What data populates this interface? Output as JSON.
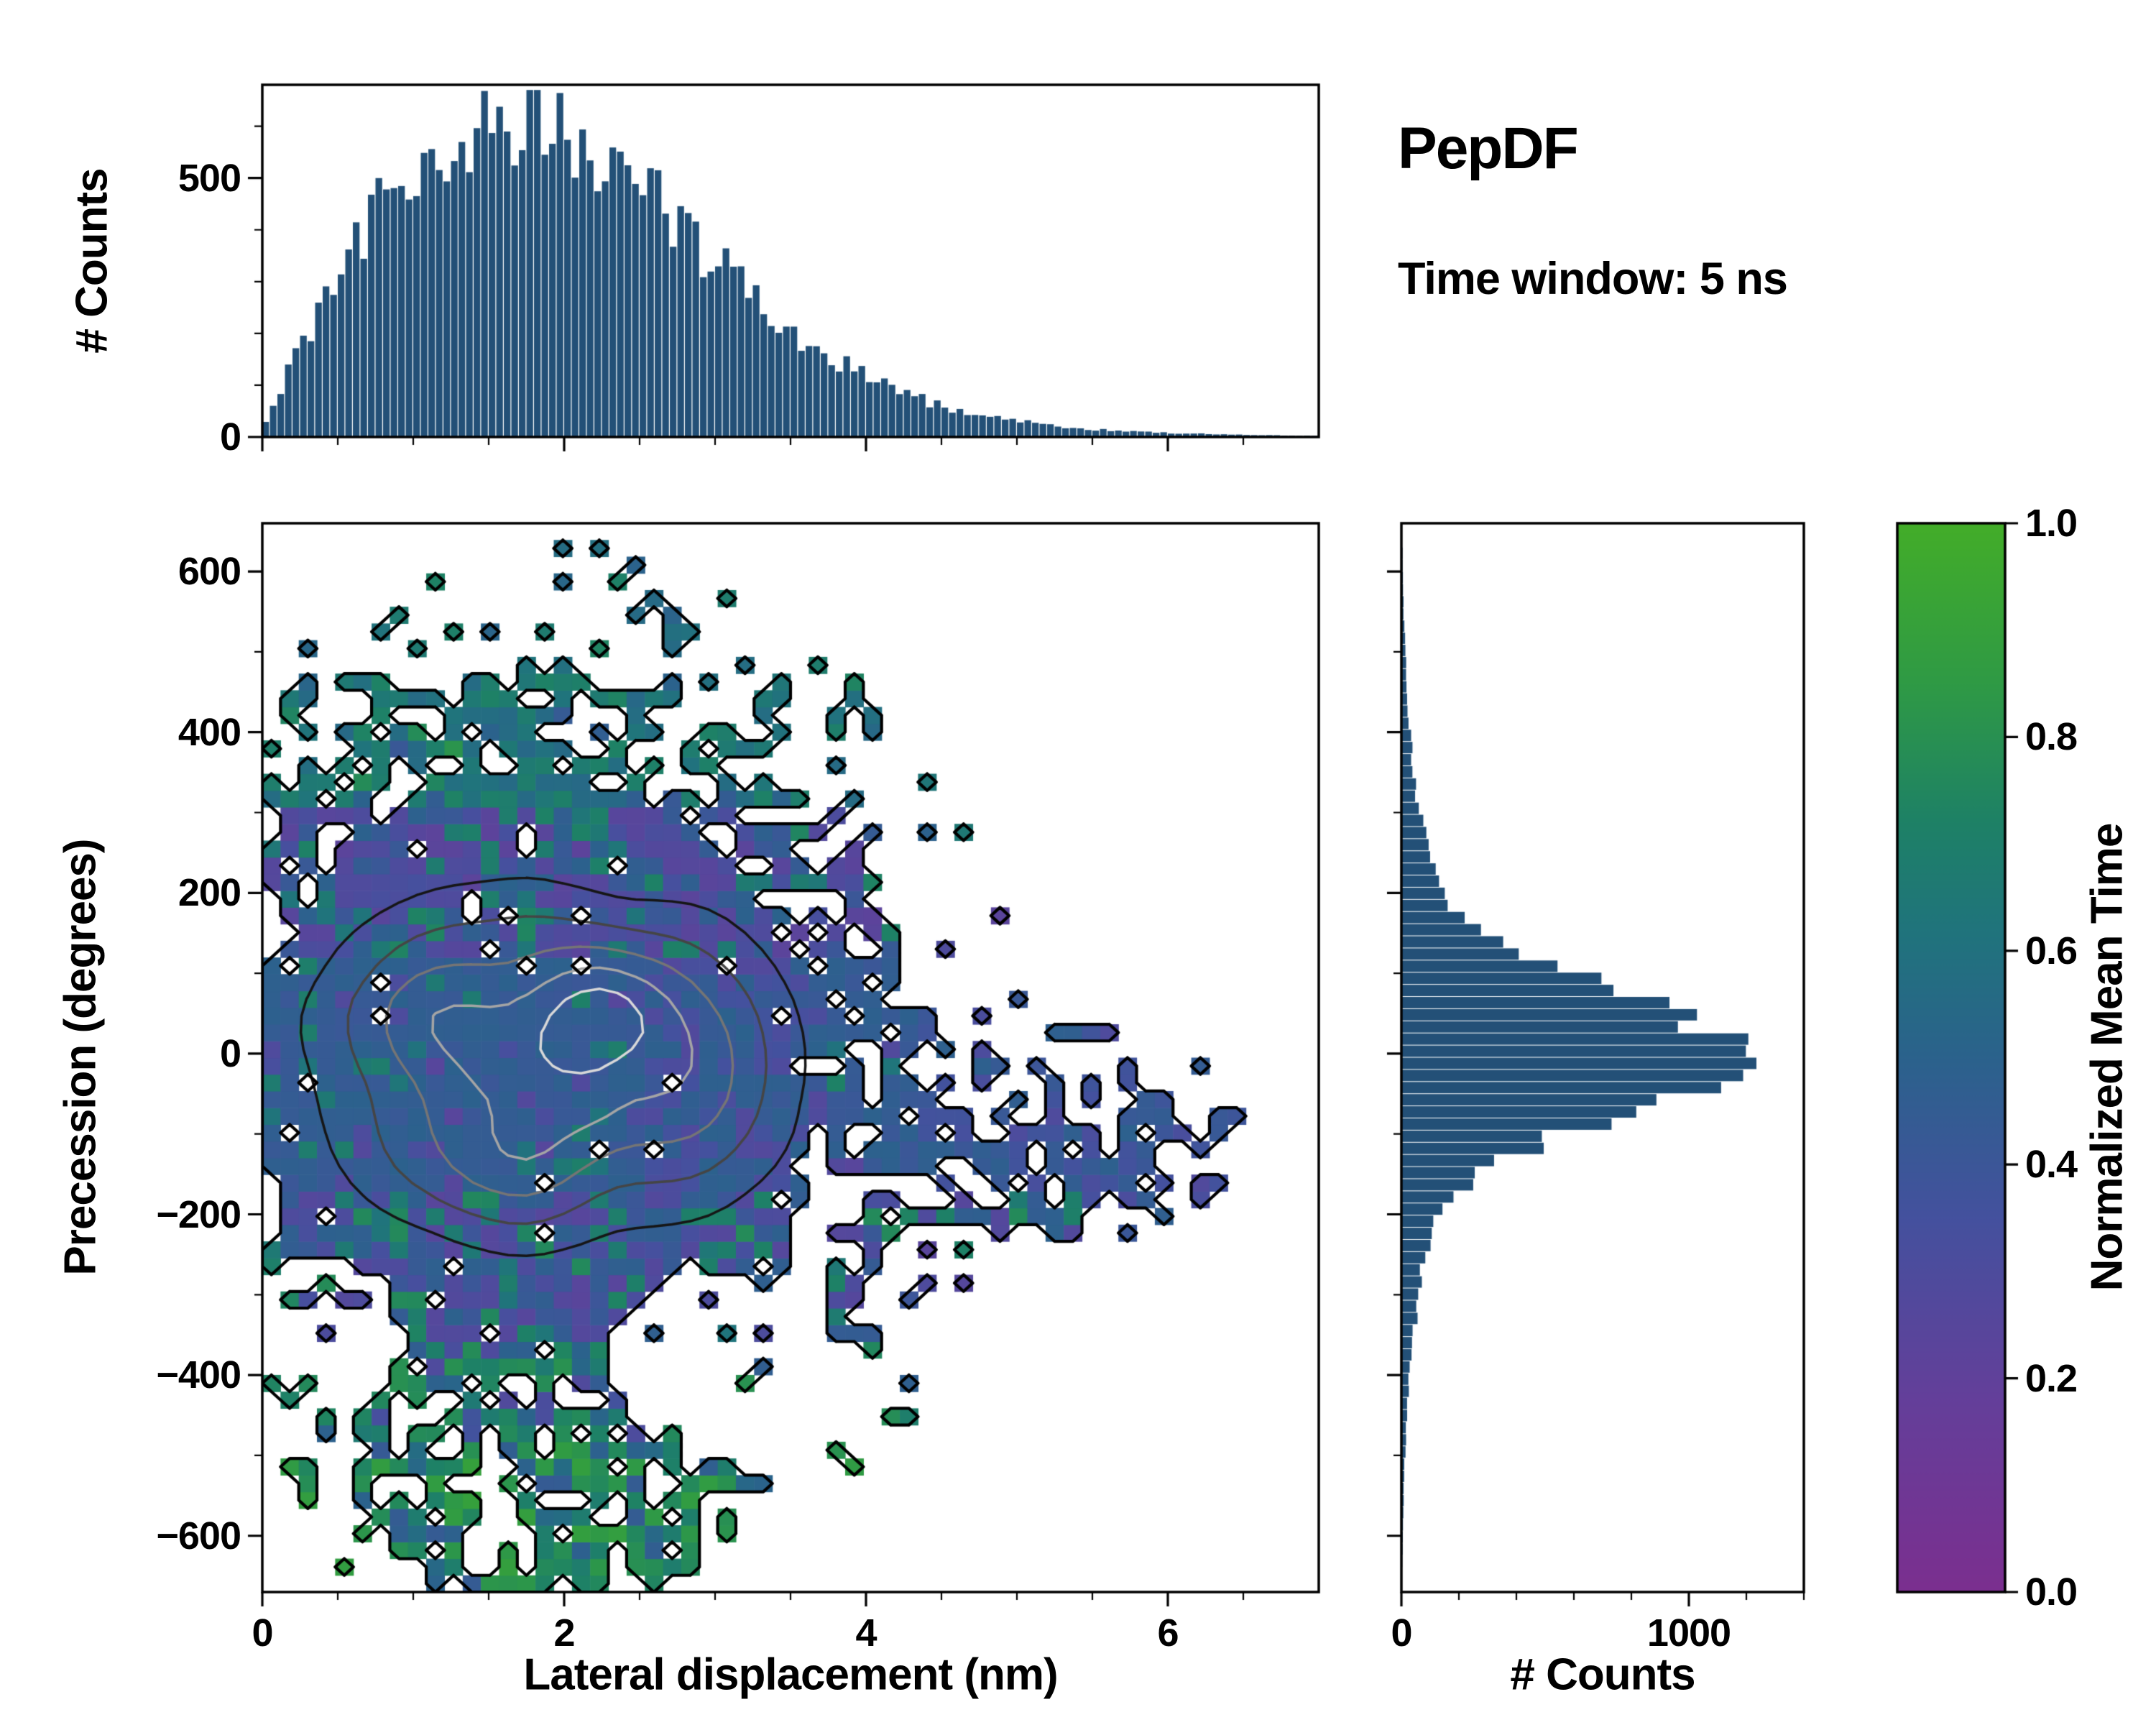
{
  "figure": {
    "title": "PepDF",
    "subtitle": "Time window: 5 ns",
    "background": "#ffffff"
  },
  "style": {
    "bar_color": "#235077",
    "axis_color": "#000000",
    "text_color": "#000000",
    "outline_color": "#000000",
    "colormap_stops": [
      [
        0.0,
        "#7b2f8f"
      ],
      [
        0.18,
        "#643f9a"
      ],
      [
        0.35,
        "#44519e"
      ],
      [
        0.5,
        "#2b628c"
      ],
      [
        0.62,
        "#20747c"
      ],
      [
        0.72,
        "#1e8166"
      ],
      [
        0.85,
        "#2f9a45"
      ],
      [
        1.0,
        "#43ad29"
      ]
    ],
    "contour_levels": [
      0.18,
      0.33,
      0.5,
      0.67,
      0.83
    ],
    "contour_colors": [
      "#161616",
      "#454545",
      "#757575",
      "#a5a5a5",
      "#d8d8d8"
    ]
  },
  "chart_data": [
    {
      "id": "top_histogram",
      "type": "bar",
      "ylabel": "# Counts",
      "xlim": [
        0,
        7
      ],
      "ylim": [
        0,
        680
      ],
      "bins": 140,
      "yticks": {
        "values": [
          0,
          500
        ],
        "labels": [
          "0",
          "500"
        ]
      },
      "xticks": {
        "values": [
          0,
          2,
          4,
          6
        ],
        "labels": []
      },
      "anchors": {
        "x0": 0,
        "dx": 0.25,
        "counts": [
          10,
          180,
          300,
          430,
          520,
          575,
          615,
          620,
          590,
          545,
          490,
          420,
          340,
          265,
          205,
          155,
          115,
          85,
          60,
          45,
          32,
          22,
          15,
          11,
          8,
          6,
          4,
          3,
          2
        ]
      }
    },
    {
      "id": "main_heatmap",
      "type": "heatmap",
      "xlabel": "Lateral displacement (nm)",
      "ylabel": "Precession (degrees)",
      "color_variable": "Normalized Mean Time",
      "xlim": [
        0,
        7
      ],
      "ylim": [
        -670,
        660
      ],
      "nx": 58,
      "ny": 64,
      "xticks": {
        "values": [
          0,
          2,
          4,
          6
        ],
        "labels": [
          "0",
          "2",
          "4",
          "6"
        ]
      },
      "yticks": {
        "values": [
          -600,
          -400,
          -200,
          0,
          200,
          400,
          600
        ],
        "labels": [
          "−600",
          "−400",
          "−200",
          "0",
          "200",
          "400",
          "600"
        ]
      },
      "density_model": {
        "core": {
          "cx": 1.8,
          "cy": -30,
          "rx": 2.55,
          "ry": 520
        },
        "arm": {
          "cx": 4.7,
          "cy": -100,
          "rx": 2.0,
          "ry": 150
        },
        "bottom_lobe": {
          "cx": 1.9,
          "cy": -550,
          "rx": 1.3,
          "ry": 120
        },
        "holes": [
          {
            "cx": 3.05,
            "cy": -385,
            "rx": 0.75,
            "ry": 120
          },
          {
            "cx": 0.45,
            "cy": -350,
            "rx": 0.5,
            "ry": 90
          }
        ]
      },
      "mean_time_zones": [
        {
          "y_range": [
            450,
            660
          ],
          "description": "teal ~0.62"
        },
        {
          "y_range": [
            120,
            450
          ],
          "description": "purple ~0.27 with blue/green speckle"
        },
        {
          "y_range": [
            -170,
            120
          ],
          "description": "blue ~0.45, purple patch near x 2.5-3.7"
        },
        {
          "y_range": [
            -350,
            -170
          ],
          "description": "mixed purple/blue/green"
        },
        {
          "y_range": [
            -670,
            -350
          ],
          "description": "green ~0.7"
        }
      ]
    },
    {
      "id": "right_histogram",
      "type": "bar",
      "orientation": "horizontal",
      "xlabel": "# Counts",
      "xlim": [
        0,
        1400
      ],
      "ylim": [
        -670,
        660
      ],
      "bins": 88,
      "xticks": {
        "values": [
          0,
          1000
        ],
        "labels": [
          "0",
          "1000"
        ]
      },
      "anchors": {
        "y0": -650,
        "dy": 50,
        "counts": [
          2,
          5,
          8,
          12,
          18,
          28,
          42,
          60,
          85,
          130,
          260,
          540,
          950,
          1250,
          980,
          560,
          270,
          140,
          90,
          62,
          44,
          30,
          20,
          13,
          8,
          5,
          2
        ]
      }
    },
    {
      "id": "colorbar",
      "type": "colorbar",
      "label": "Normalized Mean Time",
      "lim": [
        0,
        1
      ],
      "ticks": {
        "values": [
          0,
          0.2,
          0.4,
          0.6,
          0.8,
          1
        ],
        "labels": [
          "0.0",
          "0.2",
          "0.4",
          "0.6",
          "0.8",
          "1.0"
        ]
      }
    }
  ]
}
